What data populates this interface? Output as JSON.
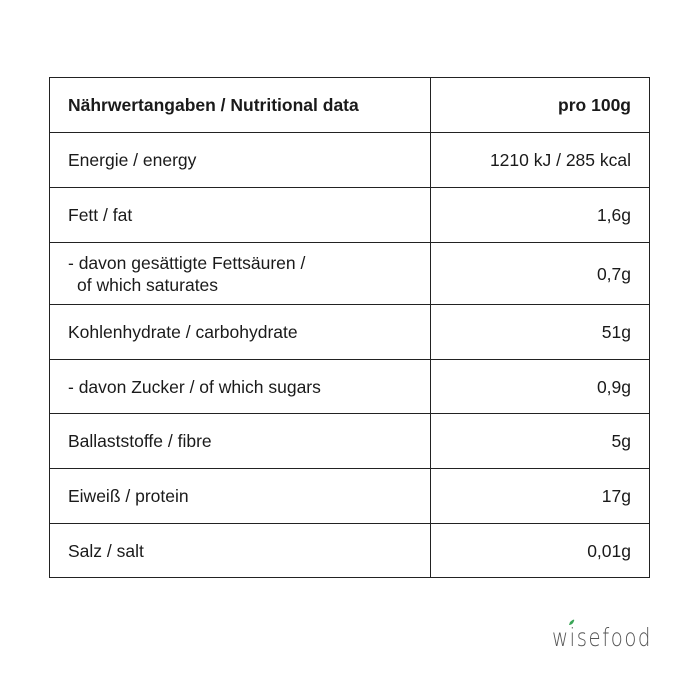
{
  "table": {
    "header": {
      "label": "Nährwertangaben / Nutritional data",
      "value": "pro 100g"
    },
    "rows": [
      {
        "label": "Energie / energy",
        "value": "1210 kJ / 285 kcal"
      },
      {
        "label": "Fett / fat",
        "value": "1,6g"
      },
      {
        "label": "- davon gesättigte Fettsäuren /",
        "label2": "of which saturates",
        "value": "0,7g"
      },
      {
        "label": "Kohlenhydrate / carbohydrate",
        "value": "51g"
      },
      {
        "label": "- davon Zucker / of which sugars",
        "value": "0,9g"
      },
      {
        "label": "Ballaststoffe / fibre",
        "value": "5g"
      },
      {
        "label": "Eiweiß / protein",
        "value": "17g"
      },
      {
        "label": "Salz / salt",
        "value": "0,01g"
      }
    ]
  },
  "logo": {
    "text": "wisefood",
    "leaf_color": "#3aa657",
    "text_color": "#555555"
  }
}
